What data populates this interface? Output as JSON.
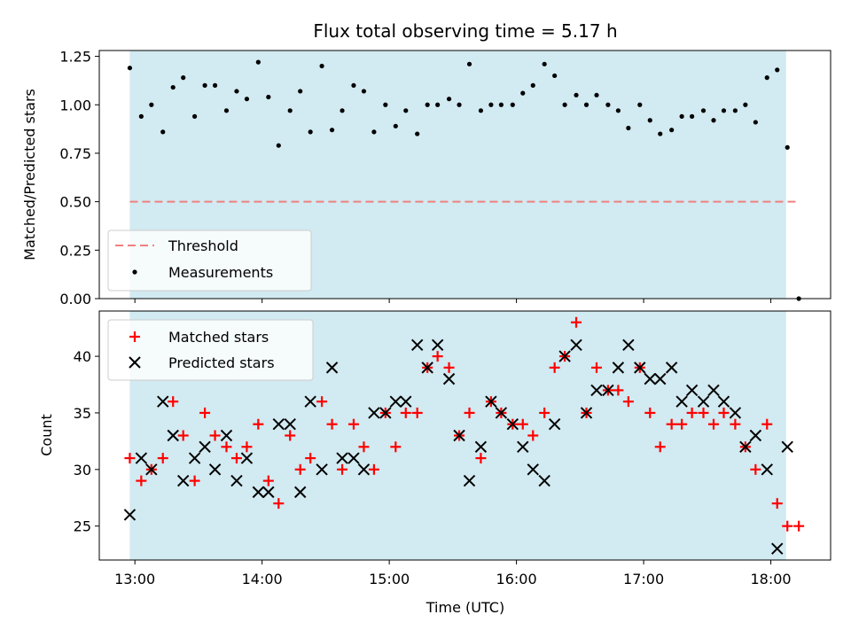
{
  "chart_data": [
    {
      "type": "scatter",
      "title": "Flux total observing time = 5.17 h",
      "xlabel": "",
      "ylabel": "Matched/Predicted stars",
      "ylim": [
        0,
        1.28
      ],
      "y_ticks": [
        "0.00",
        "0.25",
        "0.50",
        "0.75",
        "1.00",
        "1.25"
      ],
      "x_unit": "hours UTC",
      "xlim": [
        12.72,
        18.47
      ],
      "shaded_span": [
        12.96,
        18.12
      ],
      "threshold": {
        "name": "Threshold",
        "value": 0.5,
        "x_range": [
          12.96,
          18.22
        ],
        "color": "#f08080"
      },
      "series": [
        {
          "name": "Measurements",
          "color": "#000000",
          "x": [
            12.96,
            13.05,
            13.13,
            13.22,
            13.3,
            13.38,
            13.47,
            13.55,
            13.63,
            13.72,
            13.8,
            13.88,
            13.97,
            14.05,
            14.13,
            14.22,
            14.3,
            14.38,
            14.47,
            14.55,
            14.63,
            14.72,
            14.8,
            14.88,
            14.97,
            15.05,
            15.13,
            15.22,
            15.3,
            15.38,
            15.47,
            15.55,
            15.63,
            15.72,
            15.8,
            15.88,
            15.97,
            16.05,
            16.13,
            16.22,
            16.3,
            16.38,
            16.47,
            16.55,
            16.63,
            16.72,
            16.8,
            16.88,
            16.97,
            17.05,
            17.13,
            17.22,
            17.3,
            17.38,
            17.47,
            17.55,
            17.63,
            17.72,
            17.8,
            17.88,
            17.97,
            18.05,
            18.13,
            18.22
          ],
          "y": [
            1.19,
            0.94,
            1.0,
            0.86,
            1.09,
            1.14,
            0.94,
            1.1,
            1.1,
            0.97,
            1.07,
            1.03,
            1.22,
            1.04,
            0.79,
            0.97,
            1.07,
            0.86,
            1.2,
            0.87,
            0.97,
            1.1,
            1.07,
            0.86,
            1.0,
            0.89,
            0.97,
            0.85,
            1.0,
            1.0,
            1.03,
            1.0,
            1.21,
            0.97,
            1.0,
            1.0,
            1.0,
            1.06,
            1.1,
            1.21,
            1.15,
            1.0,
            1.05,
            1.0,
            1.05,
            1.0,
            0.97,
            0.88,
            1.0,
            0.92,
            0.85,
            0.87,
            0.94,
            0.94,
            0.97,
            0.92,
            0.97,
            0.97,
            1.0,
            0.91,
            1.14,
            1.18,
            0.78,
            0.0
          ]
        }
      ],
      "legend": {
        "placement": "lower-left",
        "entries": [
          "Threshold",
          "Measurements"
        ]
      }
    },
    {
      "type": "scatter",
      "title": "",
      "xlabel": "Time (UTC)",
      "ylabel": "Count",
      "ylim": [
        22,
        44
      ],
      "y_ticks": [
        "25",
        "30",
        "35",
        "40"
      ],
      "x_ticks": [
        "13:00",
        "14:00",
        "15:00",
        "16:00",
        "17:00",
        "18:00"
      ],
      "x_unit": "hours UTC",
      "xlim": [
        12.72,
        18.47
      ],
      "shaded_span": [
        12.96,
        18.12
      ],
      "series": [
        {
          "name": "Matched stars",
          "color": "#ff0000",
          "marker": "plus",
          "x": [
            12.96,
            13.05,
            13.13,
            13.22,
            13.3,
            13.38,
            13.47,
            13.55,
            13.63,
            13.72,
            13.8,
            13.88,
            13.97,
            14.05,
            14.13,
            14.22,
            14.3,
            14.38,
            14.47,
            14.55,
            14.63,
            14.72,
            14.8,
            14.88,
            14.97,
            15.05,
            15.13,
            15.22,
            15.3,
            15.38,
            15.47,
            15.55,
            15.63,
            15.72,
            15.8,
            15.88,
            15.97,
            16.05,
            16.13,
            16.22,
            16.3,
            16.38,
            16.47,
            16.55,
            16.63,
            16.72,
            16.8,
            16.88,
            16.97,
            17.05,
            17.13,
            17.22,
            17.3,
            17.38,
            17.47,
            17.55,
            17.63,
            17.72,
            17.8,
            17.88,
            17.97,
            18.05,
            18.13,
            18.22
          ],
          "y": [
            31,
            29,
            30,
            31,
            36,
            33,
            29,
            35,
            33,
            32,
            31,
            32,
            34,
            29,
            27,
            33,
            30,
            31,
            36,
            34,
            30,
            34,
            32,
            30,
            35,
            32,
            35,
            35,
            39,
            40,
            39,
            33,
            35,
            31,
            36,
            35,
            34,
            34,
            33,
            35,
            39,
            40,
            43,
            35,
            39,
            37,
            37,
            36,
            39,
            35,
            32,
            34,
            34,
            35,
            35,
            34,
            35,
            34,
            32,
            30,
            34,
            27,
            25,
            25
          ]
        },
        {
          "name": "Predicted stars",
          "color": "#000000",
          "marker": "x",
          "x": [
            12.96,
            13.05,
            13.13,
            13.22,
            13.3,
            13.38,
            13.47,
            13.55,
            13.63,
            13.72,
            13.8,
            13.88,
            13.97,
            14.05,
            14.13,
            14.22,
            14.3,
            14.38,
            14.47,
            14.55,
            14.63,
            14.72,
            14.8,
            14.88,
            14.97,
            15.05,
            15.13,
            15.22,
            15.3,
            15.38,
            15.47,
            15.55,
            15.63,
            15.72,
            15.8,
            15.88,
            15.97,
            16.05,
            16.13,
            16.22,
            16.3,
            16.38,
            16.47,
            16.55,
            16.63,
            16.72,
            16.8,
            16.88,
            16.97,
            17.05,
            17.13,
            17.22,
            17.3,
            17.38,
            17.47,
            17.55,
            17.63,
            17.72,
            17.8,
            17.88,
            17.97,
            18.05,
            18.13
          ],
          "y": [
            26,
            31,
            30,
            36,
            33,
            29,
            31,
            32,
            30,
            33,
            29,
            31,
            28,
            28,
            34,
            34,
            28,
            36,
            30,
            39,
            31,
            31,
            30,
            35,
            35,
            36,
            36,
            41,
            39,
            41,
            38,
            33,
            29,
            32,
            36,
            35,
            34,
            32,
            30,
            29,
            34,
            40,
            41,
            35,
            37,
            37,
            39,
            41,
            39,
            38,
            38,
            39,
            36,
            37,
            36,
            37,
            36,
            35,
            32,
            33,
            30,
            23,
            32
          ]
        }
      ],
      "legend": {
        "placement": "upper-left",
        "entries": [
          "Matched stars",
          "Predicted stars"
        ]
      }
    }
  ]
}
